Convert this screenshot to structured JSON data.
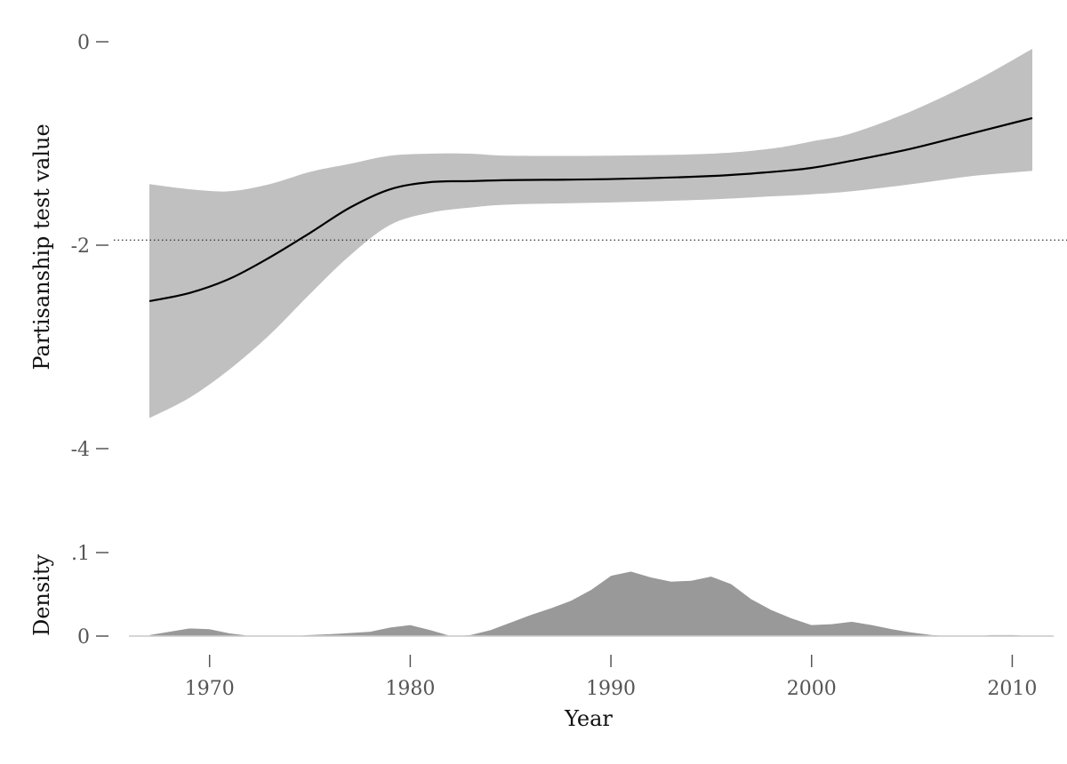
{
  "chart_data": [
    {
      "type": "line",
      "panel": "fit",
      "xlabel": "",
      "ylabel": "Partisanship test value",
      "xlim": [
        1967,
        2011
      ],
      "ylim": [
        -4,
        0
      ],
      "yticks": [
        0,
        -2,
        -4
      ],
      "ytick_labels": [
        "0",
        "-2",
        "-4"
      ],
      "reference_line": -1.95,
      "band_color": "#c0c0c0",
      "line_color": "#000000",
      "series": [
        {
          "type": "area_band",
          "x": [
            1967,
            1969,
            1971,
            1973,
            1975,
            1977,
            1979,
            1981,
            1983,
            1985,
            1990,
            1995,
            1998,
            2000,
            2002,
            2005,
            2008,
            2011
          ],
          "lower": [
            -3.7,
            -3.5,
            -3.22,
            -2.88,
            -2.48,
            -2.1,
            -1.8,
            -1.68,
            -1.63,
            -1.6,
            -1.58,
            -1.55,
            -1.52,
            -1.5,
            -1.47,
            -1.4,
            -1.32,
            -1.27
          ],
          "upper": [
            -1.4,
            -1.45,
            -1.47,
            -1.4,
            -1.28,
            -1.2,
            -1.12,
            -1.1,
            -1.1,
            -1.12,
            -1.12,
            -1.1,
            -1.05,
            -0.98,
            -0.9,
            -0.68,
            -0.4,
            -0.07
          ]
        },
        {
          "type": "line",
          "x": [
            1967,
            1969,
            1971,
            1973,
            1975,
            1977,
            1979,
            1981,
            1983,
            1985,
            1990,
            1995,
            1998,
            2000,
            2002,
            2005,
            2008,
            2011
          ],
          "y": [
            -2.55,
            -2.47,
            -2.33,
            -2.12,
            -1.88,
            -1.63,
            -1.45,
            -1.38,
            -1.37,
            -1.36,
            -1.35,
            -1.32,
            -1.28,
            -1.24,
            -1.17,
            -1.05,
            -0.9,
            -0.75
          ]
        }
      ]
    },
    {
      "type": "area",
      "panel": "density",
      "xlabel": "Year",
      "ylabel": "Density",
      "xlim": [
        1967,
        2011
      ],
      "ylim": [
        0,
        0.1
      ],
      "yticks": [
        0.1,
        0
      ],
      "ytick_labels": [
        ".1",
        "0"
      ],
      "xticks": [
        1970,
        1980,
        1990,
        2000,
        2010
      ],
      "xtick_labels": [
        "1970",
        "1980",
        "1990",
        "2000",
        "2010"
      ],
      "fill_color": "#999999",
      "x": [
        1967,
        1968,
        1969,
        1970,
        1971,
        1972,
        1974,
        1976,
        1978,
        1979,
        1980,
        1981,
        1982,
        1983,
        1984,
        1985,
        1986,
        1987,
        1988,
        1989,
        1990,
        1991,
        1992,
        1993,
        1994,
        1995,
        1996,
        1997,
        1998,
        1999,
        2000,
        2001,
        2002,
        2003,
        2004,
        2005,
        2006,
        2007,
        2008,
        2009,
        2010,
        2011
      ],
      "y": [
        0.002,
        0.006,
        0.01,
        0.009,
        0.004,
        0.001,
        0.001,
        0.003,
        0.006,
        0.011,
        0.014,
        0.008,
        0.001,
        0.002,
        0.008,
        0.017,
        0.026,
        0.034,
        0.043,
        0.056,
        0.073,
        0.078,
        0.071,
        0.066,
        0.067,
        0.072,
        0.063,
        0.045,
        0.032,
        0.022,
        0.014,
        0.015,
        0.018,
        0.014,
        0.009,
        0.005,
        0.002,
        0.001,
        0.001,
        0.002,
        0.002,
        0.001
      ]
    }
  ]
}
